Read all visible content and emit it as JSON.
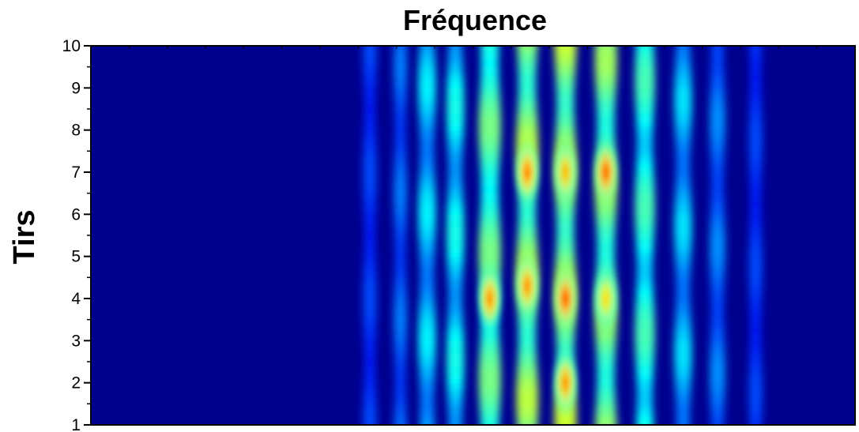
{
  "chart_data": {
    "type": "heatmap",
    "title": "Fréquence",
    "xlabel": "",
    "ylabel": "Tirs",
    "ylim": [
      1,
      10
    ],
    "y_ticks": [
      "1",
      "2",
      "3",
      "4",
      "5",
      "6",
      "7",
      "8",
      "9",
      "10"
    ],
    "x_ticks": [],
    "colormap": [
      "#00007f",
      "#0000ff",
      "#00ffff",
      "#7fff7f",
      "#ffff00",
      "#ff7f00",
      "#ff0000"
    ],
    "background_color": "#00008f",
    "stripes": [
      {
        "x": 0.365,
        "intensity": 0.12,
        "width": 0.006
      },
      {
        "x": 0.405,
        "intensity": 0.18,
        "width": 0.006
      },
      {
        "x": 0.44,
        "intensity": 0.32,
        "width": 0.008
      },
      {
        "x": 0.477,
        "intensity": 0.38,
        "width": 0.008
      },
      {
        "x": 0.522,
        "intensity": 0.62,
        "width": 0.01
      },
      {
        "x": 0.571,
        "intensity": 0.78,
        "width": 0.01
      },
      {
        "x": 0.621,
        "intensity": 0.82,
        "width": 0.01
      },
      {
        "x": 0.674,
        "intensity": 0.72,
        "width": 0.01
      },
      {
        "x": 0.725,
        "intensity": 0.5,
        "width": 0.009
      },
      {
        "x": 0.775,
        "intensity": 0.3,
        "width": 0.008
      },
      {
        "x": 0.82,
        "intensity": 0.2,
        "width": 0.007
      },
      {
        "x": 0.87,
        "intensity": 0.12,
        "width": 0.006
      }
    ],
    "hotspots": [
      {
        "x": 0.621,
        "y": 4.0,
        "value": 1.0
      },
      {
        "x": 0.674,
        "y": 7.0,
        "value": 0.98
      },
      {
        "x": 0.571,
        "y": 7.0,
        "value": 0.9
      },
      {
        "x": 0.571,
        "y": 4.3,
        "value": 0.85
      },
      {
        "x": 0.522,
        "y": 4.0,
        "value": 0.85
      },
      {
        "x": 0.621,
        "y": 2.0,
        "value": 0.85
      },
      {
        "x": 0.621,
        "y": 7.0,
        "value": 0.75
      },
      {
        "x": 0.674,
        "y": 4.0,
        "value": 0.65
      }
    ]
  }
}
